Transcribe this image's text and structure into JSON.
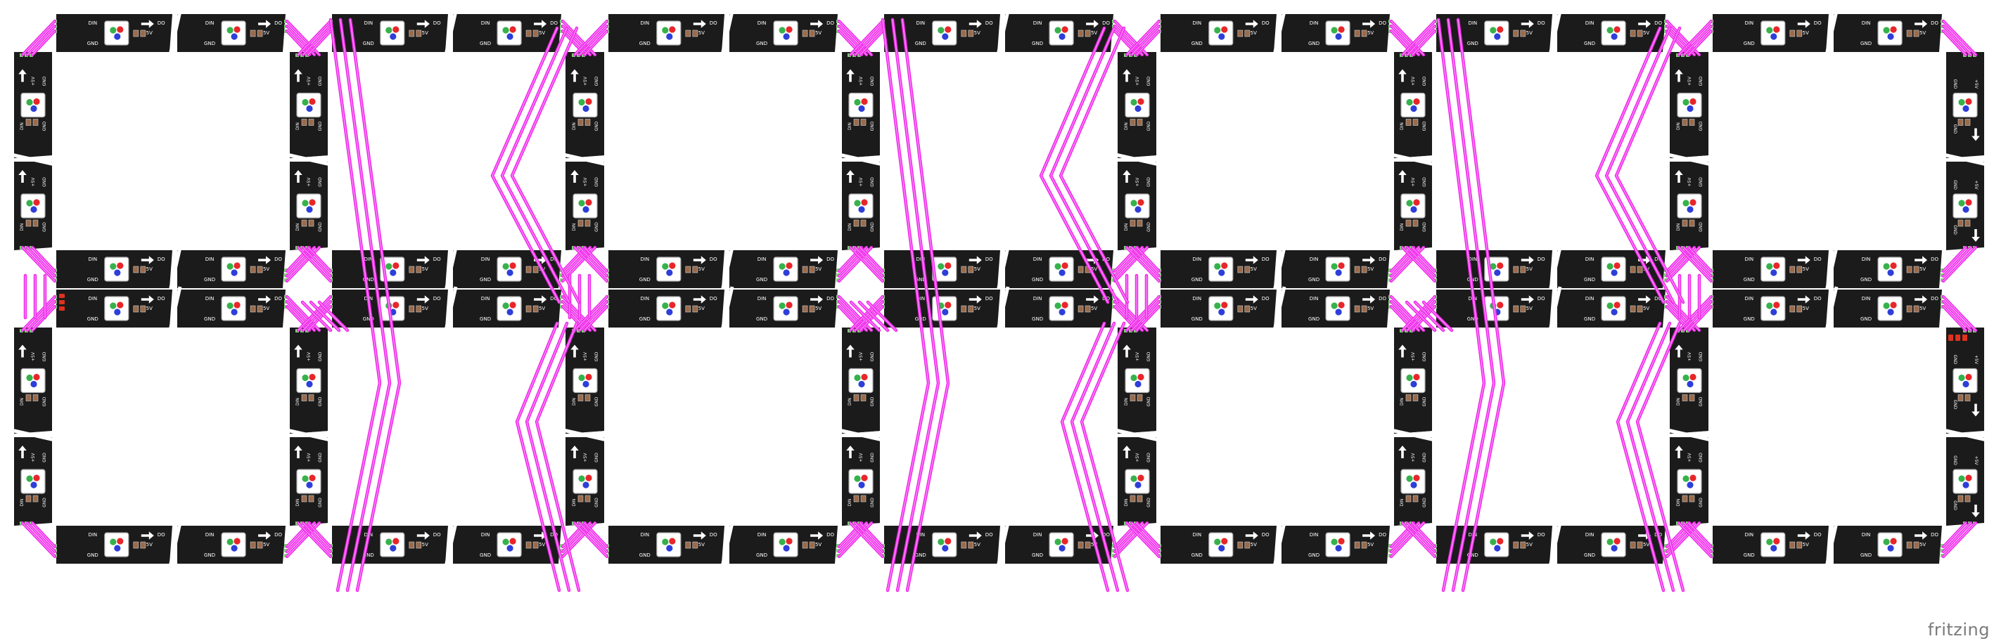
{
  "app": {
    "watermark": "fritzing"
  },
  "labels": {
    "din": "DIN",
    "do": "DO",
    "vplus": "+5V",
    "gnd": "GND"
  },
  "colors": {
    "background": "#ffffff",
    "strip": "#1b1b1b",
    "wire": "#ee2ee8",
    "wire_core": "#ff8cff",
    "led_body": "#ffffff",
    "led_red": "#e8262a",
    "led_green": "#36b24a",
    "led_blue": "#2d3fd8",
    "pad": "#9a6a4a",
    "pin_green": "#7ed07a",
    "connector_red": "#e0301e",
    "watermark": "#7a7a7a"
  },
  "icons": [
    "led-chip-icon",
    "arrow-right-icon",
    "arrow-up-icon",
    "arrow-down-icon",
    "red-connector-icon"
  ],
  "diagram": {
    "type": "breadboard-wiring",
    "panel_columns": 7,
    "panel_rows": 2,
    "strips_per_side": 2,
    "led_per_strip": 1,
    "wire_color_name": "magenta"
  }
}
